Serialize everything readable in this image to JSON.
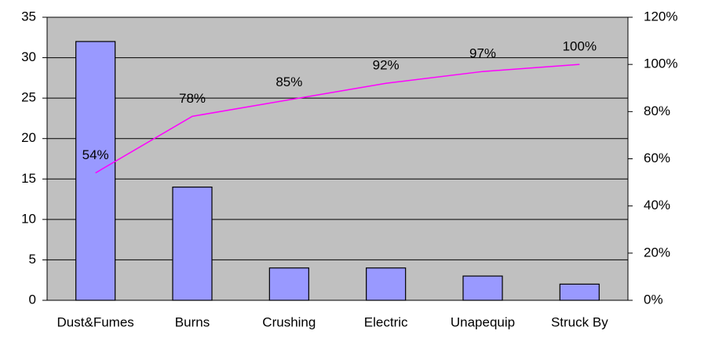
{
  "chart_data": {
    "type": "bar",
    "categories": [
      "Dust&Fumes",
      "Burns",
      "Crushing",
      "Electric",
      "Unapequip",
      "Struck By"
    ],
    "series": [
      {
        "color": "#9999ff",
        "values": [
          32,
          14,
          4,
          4,
          3,
          2
        ]
      },
      {
        "type": "line",
        "axis": "y2",
        "color": "#ff00ff",
        "values": [
          54,
          78,
          85,
          92,
          97,
          100
        ],
        "value_labels": [
          "54%",
          "78%",
          "85%",
          "92%",
          "97%",
          "100%"
        ]
      }
    ],
    "ylim": [
      0,
      35
    ],
    "yticks": [
      0,
      5,
      10,
      15,
      20,
      25,
      30,
      35
    ],
    "y2lim": [
      0,
      120
    ],
    "y2ticks": [
      {
        "value": 0,
        "label": "0%"
      },
      {
        "value": 20,
        "label": "20%"
      },
      {
        "value": 40,
        "label": "40%"
      },
      {
        "value": 60,
        "label": "60%"
      },
      {
        "value": 80,
        "label": "80%"
      },
      {
        "value": 100,
        "label": "100%"
      },
      {
        "value": 120,
        "label": "120%"
      }
    ],
    "grid": true,
    "background": "#c0c0c0"
  }
}
